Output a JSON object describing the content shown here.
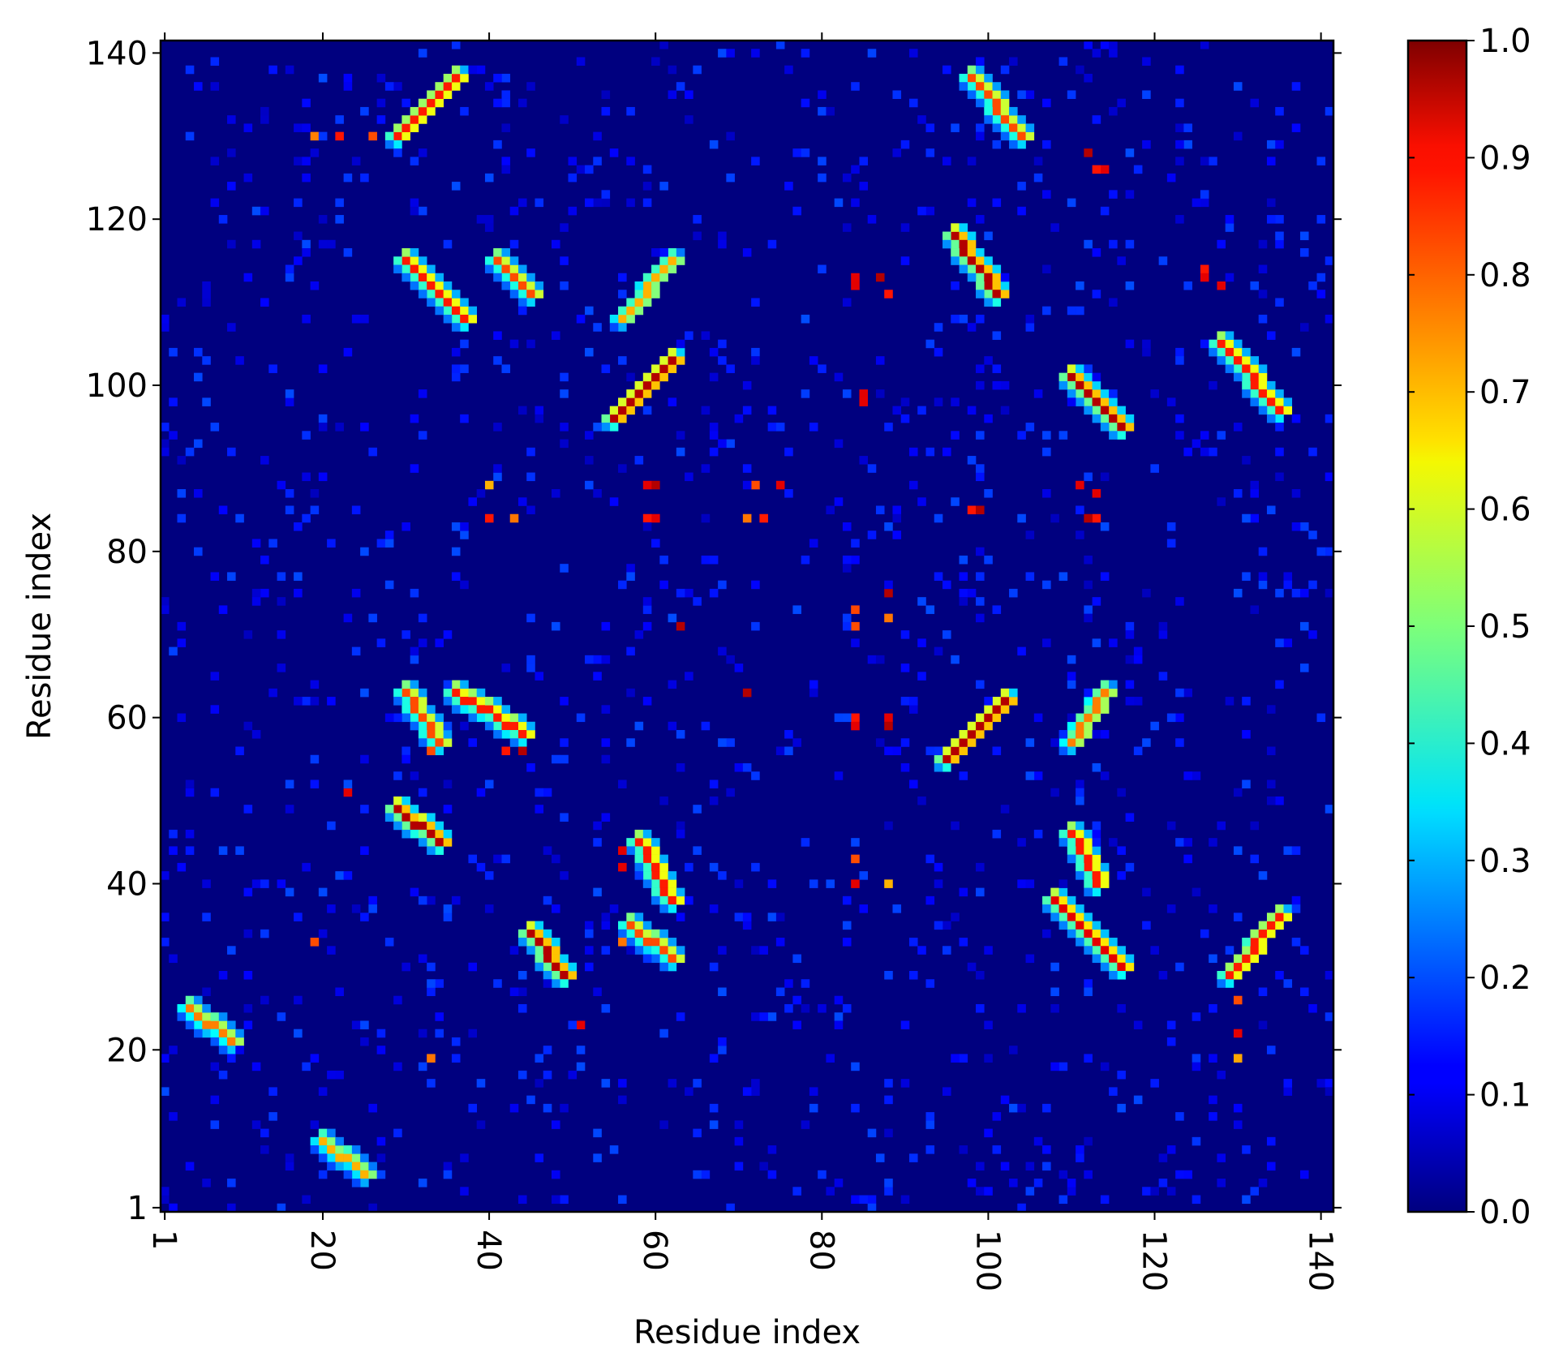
{
  "chart_data": {
    "type": "heatmap",
    "title": "",
    "xlabel": "Residue index",
    "ylabel": "Residue index",
    "xlim": [
      1,
      141
    ],
    "ylim": [
      1,
      141
    ],
    "x_ticks": [
      "1",
      "20",
      "40",
      "60",
      "80",
      "100",
      "120",
      "140"
    ],
    "y_ticks": [
      "1",
      "20",
      "40",
      "60",
      "80",
      "100",
      "120",
      "140"
    ],
    "x_tick_values": [
      1,
      20,
      40,
      60,
      80,
      100,
      120,
      140
    ],
    "y_tick_values": [
      1,
      20,
      40,
      60,
      80,
      100,
      120,
      140
    ],
    "x_tick_rotation": "90deg clockwise",
    "colorbar": {
      "colormap": "jet",
      "range": [
        0,
        1
      ],
      "ticks": [
        "0.0",
        "0.1",
        "0.2",
        "0.3",
        "0.4",
        "0.5",
        "0.6",
        "0.7",
        "0.8",
        "0.9",
        "1.0"
      ],
      "tick_values": [
        0,
        0.1,
        0.2,
        0.3,
        0.4,
        0.5,
        0.6,
        0.7,
        0.8,
        0.9,
        1.0
      ],
      "placement": "right"
    },
    "background_value": 0.02,
    "high_contact_segments": [
      {
        "from": [
          45,
          34
        ],
        "to": [
          49,
          29
        ],
        "value": 0.95
      },
      {
        "from": [
          29,
          49
        ],
        "to": [
          34,
          45
        ],
        "value": 0.95
      },
      {
        "from": [
          29,
          130
        ],
        "to": [
          36,
          137
        ],
        "value": 0.85
      },
      {
        "from": [
          30,
          115
        ],
        "to": [
          37,
          108
        ],
        "value": 0.85
      },
      {
        "from": [
          41,
          115
        ],
        "to": [
          45,
          111
        ],
        "value": 0.8
      },
      {
        "from": [
          56,
          108
        ],
        "to": [
          62,
          115
        ],
        "value": 0.7
      },
      {
        "from": [
          55,
          96
        ],
        "to": [
          62,
          103
        ],
        "value": 0.95
      },
      {
        "from": [
          96,
          118
        ],
        "to": [
          101,
          111
        ],
        "value": 0.95
      },
      {
        "from": [
          98,
          137
        ],
        "to": [
          104,
          130
        ],
        "value": 0.8
      },
      {
        "from": [
          110,
          101
        ],
        "to": [
          116,
          95
        ],
        "value": 0.95
      },
      {
        "from": [
          128,
          105
        ],
        "to": [
          135,
          97
        ],
        "value": 0.85
      },
      {
        "from": [
          95,
          55
        ],
        "to": [
          102,
          62
        ],
        "value": 0.95
      },
      {
        "from": [
          110,
          57
        ],
        "to": [
          114,
          63
        ],
        "value": 0.75
      },
      {
        "from": [
          108,
          38
        ],
        "to": [
          116,
          30
        ],
        "value": 0.9
      },
      {
        "from": [
          110,
          46
        ],
        "to": [
          113,
          40
        ],
        "value": 0.85
      },
      {
        "from": [
          129,
          29
        ],
        "to": [
          135,
          36
        ],
        "value": 0.85
      },
      {
        "from": [
          57,
          35
        ],
        "to": [
          62,
          31
        ],
        "value": 0.8
      },
      {
        "from": [
          58,
          45
        ],
        "to": [
          62,
          38
        ],
        "value": 0.85
      },
      {
        "from": [
          30,
          63
        ],
        "to": [
          34,
          57
        ],
        "value": 0.8
      },
      {
        "from": [
          36,
          63
        ],
        "to": [
          44,
          58
        ],
        "value": 0.85
      },
      {
        "from": [
          4,
          25
        ],
        "to": [
          9,
          21
        ],
        "value": 0.75
      },
      {
        "from": [
          20,
          9
        ],
        "to": [
          25,
          5
        ],
        "value": 0.7
      }
    ],
    "high_contact_points": [
      {
        "x": 60,
        "y": 88,
        "value": 0.95
      },
      {
        "x": 60,
        "y": 84,
        "value": 0.9
      },
      {
        "x": 72,
        "y": 88,
        "value": 0.8
      },
      {
        "x": 73,
        "y": 84,
        "value": 0.85
      },
      {
        "x": 63,
        "y": 71,
        "value": 0.95
      },
      {
        "x": 71,
        "y": 63,
        "value": 0.95
      },
      {
        "x": 87,
        "y": 113,
        "value": 0.95
      },
      {
        "x": 84,
        "y": 113,
        "value": 0.9
      },
      {
        "x": 85,
        "y": 98,
        "value": 0.9
      },
      {
        "x": 99,
        "y": 85,
        "value": 0.95
      },
      {
        "x": 112,
        "y": 84,
        "value": 0.95
      },
      {
        "x": 111,
        "y": 88,
        "value": 0.9
      },
      {
        "x": 40,
        "y": 84,
        "value": 0.85
      },
      {
        "x": 40,
        "y": 88,
        "value": 0.7
      },
      {
        "x": 84,
        "y": 40,
        "value": 0.9
      },
      {
        "x": 88,
        "y": 40,
        "value": 0.7
      },
      {
        "x": 84,
        "y": 59,
        "value": 0.9
      },
      {
        "x": 88,
        "y": 59,
        "value": 0.95
      },
      {
        "x": 22,
        "y": 130,
        "value": 0.85
      },
      {
        "x": 19,
        "y": 130,
        "value": 0.75
      },
      {
        "x": 112,
        "y": 128,
        "value": 0.95
      },
      {
        "x": 114,
        "y": 126,
        "value": 0.9
      },
      {
        "x": 126,
        "y": 113,
        "value": 0.9
      },
      {
        "x": 130,
        "y": 22,
        "value": 0.9
      },
      {
        "x": 130,
        "y": 26,
        "value": 0.8
      },
      {
        "x": 51,
        "y": 23,
        "value": 0.9
      },
      {
        "x": 19,
        "y": 33,
        "value": 0.8
      },
      {
        "x": 23,
        "y": 51,
        "value": 0.9
      },
      {
        "x": 84,
        "y": 43,
        "value": 0.8
      },
      {
        "x": 84,
        "y": 71,
        "value": 0.8
      },
      {
        "x": 88,
        "y": 75,
        "value": 0.95
      },
      {
        "x": 44,
        "y": 56,
        "value": 0.95
      },
      {
        "x": 33,
        "y": 56,
        "value": 0.8
      },
      {
        "x": 56,
        "y": 42,
        "value": 0.9
      },
      {
        "x": 26,
        "y": 130,
        "value": 0.8
      }
    ]
  }
}
